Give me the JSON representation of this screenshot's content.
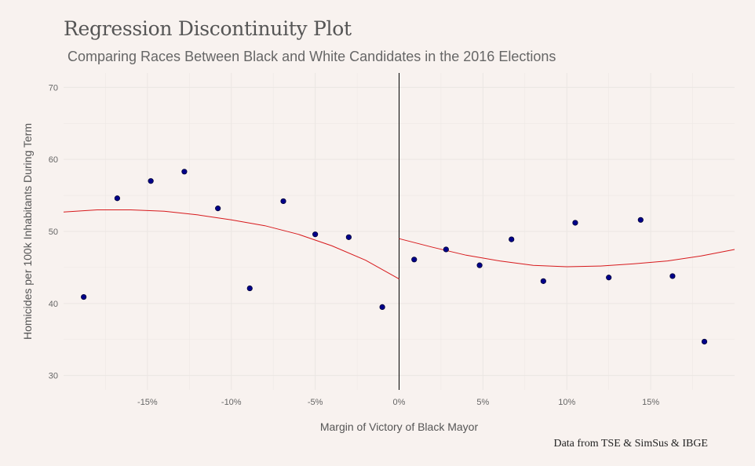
{
  "title": "Regression Discontinuity Plot",
  "subtitle": "Comparing Races Between Black and White Candidates in the 2016 Elections",
  "caption": "Data from TSE & SimSus & IBGE",
  "colors": {
    "background": "#f8f2ef",
    "points": "#00008b",
    "fit_line": "#d7191c",
    "cutoff": "#000000",
    "grid": "#ebe6e3"
  },
  "chart_data": {
    "type": "scatter",
    "xlabel": "Margin of Victory of Black Mayor",
    "ylabel": "Homicides per 100k Inhabitants During Term",
    "xlim": [
      -0.2,
      0.2
    ],
    "ylim": [
      28,
      72
    ],
    "x_ticks": [
      {
        "value": -0.15,
        "label": "-15%"
      },
      {
        "value": -0.1,
        "label": "-10%"
      },
      {
        "value": -0.05,
        "label": "-5%"
      },
      {
        "value": 0.0,
        "label": "0%"
      },
      {
        "value": 0.05,
        "label": "5%"
      },
      {
        "value": 0.1,
        "label": "10%"
      },
      {
        "value": 0.15,
        "label": "15%"
      }
    ],
    "y_ticks": [
      {
        "value": 30,
        "label": "30"
      },
      {
        "value": 40,
        "label": "40"
      },
      {
        "value": 50,
        "label": "50"
      },
      {
        "value": 60,
        "label": "60"
      },
      {
        "value": 70,
        "label": "70"
      }
    ],
    "grid": true,
    "cutoff": 0.0,
    "points": [
      {
        "x": -0.188,
        "y": 40.9
      },
      {
        "x": -0.168,
        "y": 54.6
      },
      {
        "x": -0.148,
        "y": 57.0
      },
      {
        "x": -0.128,
        "y": 58.3
      },
      {
        "x": -0.108,
        "y": 53.2
      },
      {
        "x": -0.089,
        "y": 42.1
      },
      {
        "x": -0.069,
        "y": 54.2
      },
      {
        "x": -0.05,
        "y": 49.6
      },
      {
        "x": -0.03,
        "y": 49.2
      },
      {
        "x": -0.01,
        "y": 39.5
      },
      {
        "x": 0.009,
        "y": 46.1
      },
      {
        "x": 0.028,
        "y": 47.5
      },
      {
        "x": 0.048,
        "y": 45.3
      },
      {
        "x": 0.067,
        "y": 48.9
      },
      {
        "x": 0.086,
        "y": 43.1
      },
      {
        "x": 0.105,
        "y": 51.2
      },
      {
        "x": 0.125,
        "y": 43.6
      },
      {
        "x": 0.144,
        "y": 51.6
      },
      {
        "x": 0.163,
        "y": 43.8
      },
      {
        "x": 0.182,
        "y": 34.7
      }
    ],
    "fit_left": [
      {
        "x": -0.2,
        "y": 52.7
      },
      {
        "x": -0.18,
        "y": 53.0
      },
      {
        "x": -0.16,
        "y": 53.0
      },
      {
        "x": -0.14,
        "y": 52.8
      },
      {
        "x": -0.12,
        "y": 52.3
      },
      {
        "x": -0.1,
        "y": 51.6
      },
      {
        "x": -0.08,
        "y": 50.8
      },
      {
        "x": -0.06,
        "y": 49.6
      },
      {
        "x": -0.04,
        "y": 48.0
      },
      {
        "x": -0.02,
        "y": 46.0
      },
      {
        "x": 0.0,
        "y": 43.4
      }
    ],
    "fit_right": [
      {
        "x": 0.0,
        "y": 49.0
      },
      {
        "x": 0.02,
        "y": 47.8
      },
      {
        "x": 0.04,
        "y": 46.7
      },
      {
        "x": 0.06,
        "y": 45.9
      },
      {
        "x": 0.08,
        "y": 45.3
      },
      {
        "x": 0.1,
        "y": 45.1
      },
      {
        "x": 0.12,
        "y": 45.2
      },
      {
        "x": 0.14,
        "y": 45.5
      },
      {
        "x": 0.16,
        "y": 45.9
      },
      {
        "x": 0.18,
        "y": 46.6
      },
      {
        "x": 0.2,
        "y": 47.5
      }
    ]
  }
}
